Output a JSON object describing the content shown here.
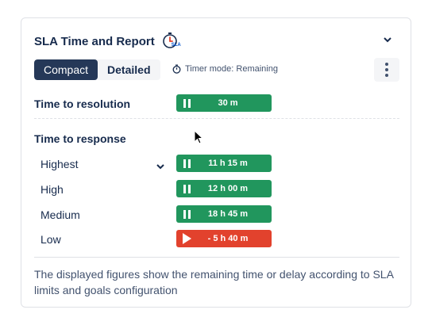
{
  "header": {
    "title": "SLA Time and Report",
    "icon_text": "SLA"
  },
  "toolbar": {
    "compact_label": "Compact",
    "detailed_label": "Detailed",
    "timer_mode_label": "Timer mode: Remaining"
  },
  "resolution": {
    "label": "Time to resolution",
    "value": "30 m",
    "state": "paused"
  },
  "response": {
    "label": "Time to response",
    "items": [
      {
        "label": "Highest",
        "value": "11 h 15 m",
        "state": "paused"
      },
      {
        "label": "High",
        "value": "12 h 00 m",
        "state": "paused"
      },
      {
        "label": "Medium",
        "value": "18 h 45 m",
        "state": "paused"
      },
      {
        "label": "Low",
        "value": "- 5 h 40 m",
        "state": "running"
      }
    ]
  },
  "footer": {
    "text": "The displayed figures show the remaining time or delay according to SLA limits and goals configuration"
  },
  "colors": {
    "ok": "#21965d",
    "breached": "#e2422d",
    "active_tab": "#253858"
  }
}
